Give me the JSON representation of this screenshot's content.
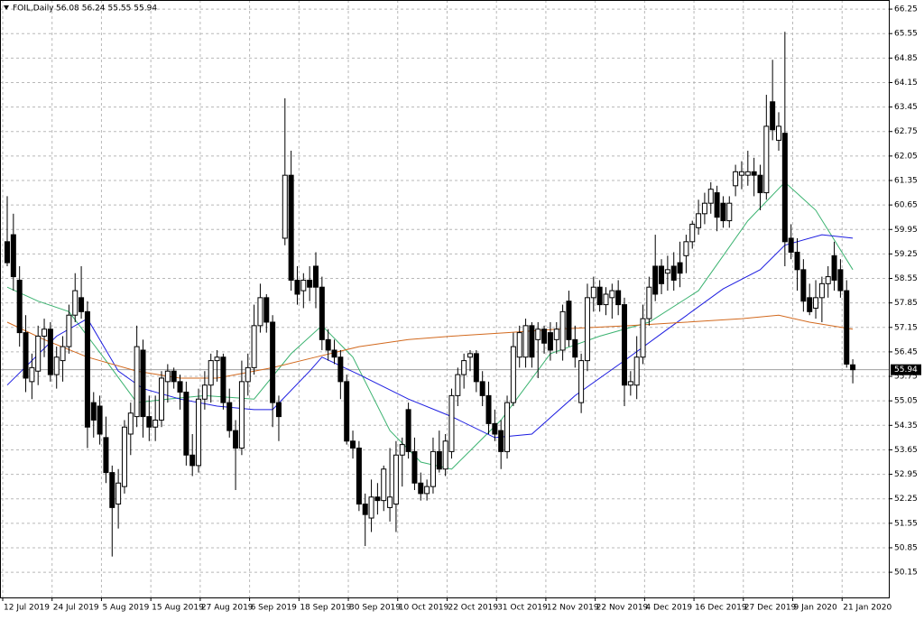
{
  "chart_data": {
    "type": "candlestick",
    "title": "FOIL,Daily",
    "categories": [
      "12 Jul 2019",
      null,
      null,
      null,
      null,
      null,
      null,
      null,
      "24 Jul 2019",
      null,
      null,
      null,
      null,
      null,
      null,
      null,
      "5 Aug 2019",
      null,
      null,
      null,
      null,
      null,
      null,
      null,
      "15 Aug 2019",
      null,
      null,
      null,
      null,
      null,
      null,
      null,
      "27 Aug 2019",
      null,
      null,
      null,
      null,
      null,
      null,
      null,
      "6 Sep 2019",
      null,
      null,
      null,
      null,
      null,
      null,
      null,
      "18 Sep 2019",
      null,
      null,
      null,
      null,
      null,
      null,
      null,
      "30 Sep 2019",
      null,
      null,
      null,
      null,
      null,
      null,
      null,
      "10 Oct 2019",
      null,
      null,
      null,
      null,
      null,
      null,
      null,
      "22 Oct 2019",
      null,
      null,
      null,
      null,
      null,
      null,
      null,
      "31 Oct 2019",
      null,
      null,
      null,
      null,
      null,
      null,
      null,
      "12 Nov 2019",
      null,
      null,
      null,
      null,
      null,
      null,
      null,
      "22 Nov 2019",
      null,
      null,
      null,
      null,
      null,
      null,
      null,
      "4 Dec 2019",
      null,
      null,
      null,
      null,
      null,
      null,
      null,
      "16 Dec 2019",
      null,
      null,
      null,
      null,
      null,
      null,
      null,
      "27 Dec 2019",
      null,
      null,
      null,
      null,
      null,
      null,
      null,
      "9 Jan 2020",
      null,
      null,
      null,
      null,
      null,
      null,
      null,
      "21 Jan 2020",
      null
    ],
    "open": [
      59.6,
      59.8,
      58.5,
      57.0,
      55.6,
      55.9,
      56.9,
      57.1,
      55.8,
      56.2,
      56.6,
      57.5,
      58.0,
      57.6,
      55.0,
      54.9,
      54.0,
      53.0,
      52.1,
      52.6,
      54.1,
      54.6,
      56.5,
      54.6,
      54.3,
      54.5,
      55.6,
      55.9,
      55.6,
      55.3,
      53.5,
      53.2,
      55.1,
      55.5,
      56.2,
      56.3,
      55.0,
      54.2,
      53.7,
      55.6,
      56.0,
      57.2,
      58.0,
      57.3,
      55.0,
      59.7,
      61.5,
      58.5,
      58.2,
      58.5,
      58.9,
      58.3,
      56.8,
      56.5,
      56.3,
      55.6,
      53.9,
      53.7,
      52.1,
      51.7,
      52.3,
      52.2,
      52.0,
      52.1,
      53.5,
      54.8,
      53.6,
      52.7,
      52.4,
      52.6,
      53.6,
      53.1,
      53.6,
      55.2,
      55.8,
      56.3,
      56.4,
      55.6,
      55.2,
      54.4,
      54.2,
      53.6,
      55.0,
      56.3,
      56.3,
      57.2,
      56.8,
      57.1,
      57.0,
      56.8,
      56.5,
      57.9,
      56.8,
      55.0,
      56.2,
      58.0,
      58.3,
      57.8,
      58.0,
      58.2,
      57.8,
      55.5,
      55.5,
      56.3,
      57.4,
      58.9,
      58.9,
      58.7,
      58.9,
      59.0,
      59.2,
      59.6,
      60.0,
      60.4,
      60.7,
      61.0,
      60.7,
      60.2,
      61.2,
      61.5,
      61.5,
      61.6,
      61.5,
      61.0,
      63.6,
      62.5,
      62.7,
      59.7,
      59.3,
      58.8,
      58.0,
      57.7,
      58.0,
      58.4,
      59.2,
      58.8,
      58.2,
      56.08
    ],
    "high": [
      60.9,
      60.4,
      58.9,
      57.5,
      56.4,
      57.2,
      57.4,
      57.3,
      56.6,
      56.9,
      57.8,
      58.7,
      58.9,
      57.9,
      55.3,
      55.2,
      54.6,
      53.2,
      53.1,
      54.5,
      55.0,
      57.2,
      56.8,
      55.2,
      55.2,
      55.9,
      56.1,
      56.0,
      55.8,
      55.6,
      54.1,
      55.4,
      55.9,
      56.4,
      56.5,
      56.4,
      55.4,
      54.5,
      56.2,
      56.4,
      57.8,
      58.4,
      58.1,
      57.5,
      55.2,
      63.7,
      62.2,
      58.9,
      58.7,
      58.9,
      59.3,
      58.6,
      57.1,
      56.8,
      56.5,
      55.8,
      54.2,
      53.9,
      52.4,
      52.8,
      52.7,
      53.2,
      53.7,
      53.9,
      54.0,
      55.0,
      54.0,
      53.0,
      52.8,
      54.0,
      54.2,
      54.1,
      55.4,
      56.0,
      56.4,
      56.5,
      56.5,
      55.9,
      55.6,
      54.8,
      54.5,
      55.2,
      57.0,
      57.2,
      57.4,
      57.3,
      57.3,
      57.2,
      57.3,
      57.3,
      57.8,
      58.2,
      57.2,
      56.4,
      58.4,
      58.6,
      58.5,
      58.3,
      58.4,
      58.5,
      58.0,
      55.9,
      56.9,
      57.8,
      58.6,
      59.8,
      59.1,
      59.2,
      59.3,
      59.6,
      59.8,
      60.2,
      60.8,
      61.0,
      61.3,
      61.2,
      60.9,
      60.9,
      61.8,
      61.9,
      62.2,
      62.0,
      61.8,
      63.8,
      64.8,
      63.3,
      65.6,
      60.1,
      59.7,
      59.1,
      58.4,
      58.5,
      58.6,
      58.9,
      59.6,
      59.1,
      58.5,
      56.24
    ],
    "low": [
      58.9,
      58.2,
      56.6,
      55.3,
      55.1,
      55.5,
      56.3,
      55.6,
      55.4,
      55.6,
      56.4,
      57.3,
      57.4,
      53.7,
      54.0,
      53.8,
      52.7,
      50.6,
      51.4,
      52.4,
      53.5,
      54.3,
      54.0,
      53.9,
      53.9,
      54.3,
      55.0,
      55.4,
      54.8,
      53.2,
      52.9,
      53.0,
      54.8,
      55.0,
      55.6,
      54.8,
      54.0,
      52.5,
      53.5,
      55.2,
      55.8,
      57.0,
      57.0,
      54.3,
      53.9,
      59.5,
      58.2,
      57.8,
      57.7,
      57.9,
      57.7,
      56.5,
      56.2,
      56.1,
      55.1,
      53.8,
      53.4,
      51.9,
      50.9,
      51.3,
      51.8,
      51.9,
      51.6,
      51.3,
      52.6,
      53.4,
      52.5,
      52.2,
      52.2,
      52.4,
      53.0,
      52.9,
      53.4,
      54.9,
      55.4,
      55.9,
      55.3,
      54.9,
      54.1,
      53.9,
      53.1,
      53.4,
      54.9,
      56.0,
      56.0,
      56.0,
      55.7,
      56.4,
      56.2,
      56.4,
      56.2,
      56.6,
      56.0,
      54.7,
      55.9,
      57.6,
      57.6,
      57.5,
      57.4,
      57.5,
      54.9,
      55.2,
      55.1,
      56.1,
      57.2,
      57.9,
      58.1,
      58.2,
      58.2,
      58.3,
      58.7,
      59.4,
      59.8,
      60.1,
      60.4,
      59.9,
      60.0,
      60.0,
      60.9,
      61.1,
      61.2,
      60.9,
      60.5,
      60.8,
      62.5,
      62.2,
      58.9,
      59.1,
      58.2,
      57.6,
      57.5,
      57.4,
      57.3,
      58.0,
      58.2,
      58.0,
      56.0,
      55.55
    ],
    "close": [
      59.0,
      58.6,
      57.0,
      55.7,
      56.0,
      56.9,
      57.1,
      55.8,
      56.3,
      56.6,
      57.5,
      58.2,
      57.6,
      54.3,
      54.5,
      54.1,
      53.0,
      52.0,
      52.7,
      54.3,
      54.7,
      56.6,
      54.6,
      54.3,
      54.5,
      55.7,
      55.9,
      55.6,
      55.3,
      53.5,
      53.2,
      55.1,
      55.5,
      56.2,
      56.3,
      55.0,
      54.2,
      53.7,
      55.6,
      56.0,
      57.2,
      58.0,
      57.3,
      55.0,
      54.6,
      61.5,
      58.5,
      58.1,
      58.5,
      58.3,
      58.3,
      56.8,
      56.5,
      56.3,
      55.6,
      53.9,
      53.7,
      52.1,
      51.8,
      52.3,
      52.2,
      53.1,
      52.3,
      53.5,
      53.8,
      53.6,
      52.7,
      52.4,
      52.6,
      53.6,
      53.1,
      53.9,
      55.2,
      55.8,
      56.2,
      56.4,
      55.6,
      55.2,
      54.4,
      54.1,
      53.6,
      55.0,
      56.6,
      57.0,
      57.2,
      56.3,
      57.1,
      56.7,
      56.5,
      57.1,
      57.6,
      56.8,
      56.3,
      56.2,
      58.0,
      58.3,
      57.8,
      58.1,
      58.2,
      57.8,
      55.5,
      55.6,
      56.3,
      57.4,
      58.3,
      58.1,
      58.4,
      58.8,
      58.5,
      58.7,
      59.6,
      60.1,
      60.4,
      60.7,
      61.1,
      60.3,
      60.2,
      60.7,
      61.6,
      61.6,
      61.6,
      61.5,
      61.0,
      62.9,
      62.8,
      62.9,
      59.6,
      59.3,
      58.8,
      57.9,
      57.6,
      58.0,
      58.4,
      58.6,
      58.5,
      58.2,
      56.1,
      55.94
    ],
    "bull_color": "#ffffff",
    "bear_color": "#000000",
    "edge_color": "#000000",
    "lines": [
      {
        "color": "#3cb371",
        "x": [
          0,
          5,
          10,
          16,
          21,
          26,
          32,
          40,
          46,
          51,
          56,
          62,
          67,
          72,
          80,
          88,
          96,
          104,
          112,
          120,
          126,
          131,
          137
        ],
        "values": [
          58.3,
          57.9,
          57.6,
          56.2,
          55.0,
          55.1,
          55.2,
          55.1,
          56.4,
          57.2,
          56.3,
          54.2,
          53.3,
          53.1,
          54.5,
          56.4,
          56.9,
          57.3,
          58.2,
          60.2,
          61.3,
          60.5,
          58.8
        ]
      },
      {
        "color": "#1c1ce0",
        "x": [
          0,
          8,
          13,
          18,
          22,
          28,
          34,
          40,
          43,
          49,
          51,
          57,
          65,
          72,
          79,
          85,
          92,
          100,
          107,
          116,
          122,
          126,
          132,
          137
        ],
        "values": [
          55.5,
          56.9,
          57.4,
          55.9,
          55.4,
          55.1,
          54.9,
          54.8,
          54.8,
          55.9,
          56.3,
          55.8,
          55.1,
          54.6,
          54.0,
          54.1,
          55.2,
          56.2,
          57.1,
          58.25,
          58.8,
          59.5,
          59.8,
          59.7
        ]
      },
      {
        "color": "#d2691e",
        "x": [
          0,
          6,
          13,
          21,
          28,
          34,
          43,
          50,
          57,
          65,
          72,
          81,
          89,
          101,
          110,
          119,
          125,
          130,
          137
        ],
        "values": [
          57.3,
          56.8,
          56.3,
          55.9,
          55.7,
          55.7,
          56.0,
          56.3,
          56.6,
          56.8,
          56.9,
          57.0,
          57.1,
          57.2,
          57.3,
          57.4,
          57.5,
          57.3,
          57.1
        ]
      }
    ],
    "ylim": [
      49.43,
      66.51
    ],
    "yticks": [
      66.25,
      65.55,
      64.85,
      64.15,
      63.45,
      62.75,
      62.05,
      61.35,
      60.65,
      59.95,
      59.25,
      58.55,
      57.85,
      57.15,
      56.45,
      55.75,
      55.05,
      54.35,
      53.65,
      52.95,
      52.25,
      51.55,
      50.85,
      50.15
    ],
    "grid": true
  }
}
